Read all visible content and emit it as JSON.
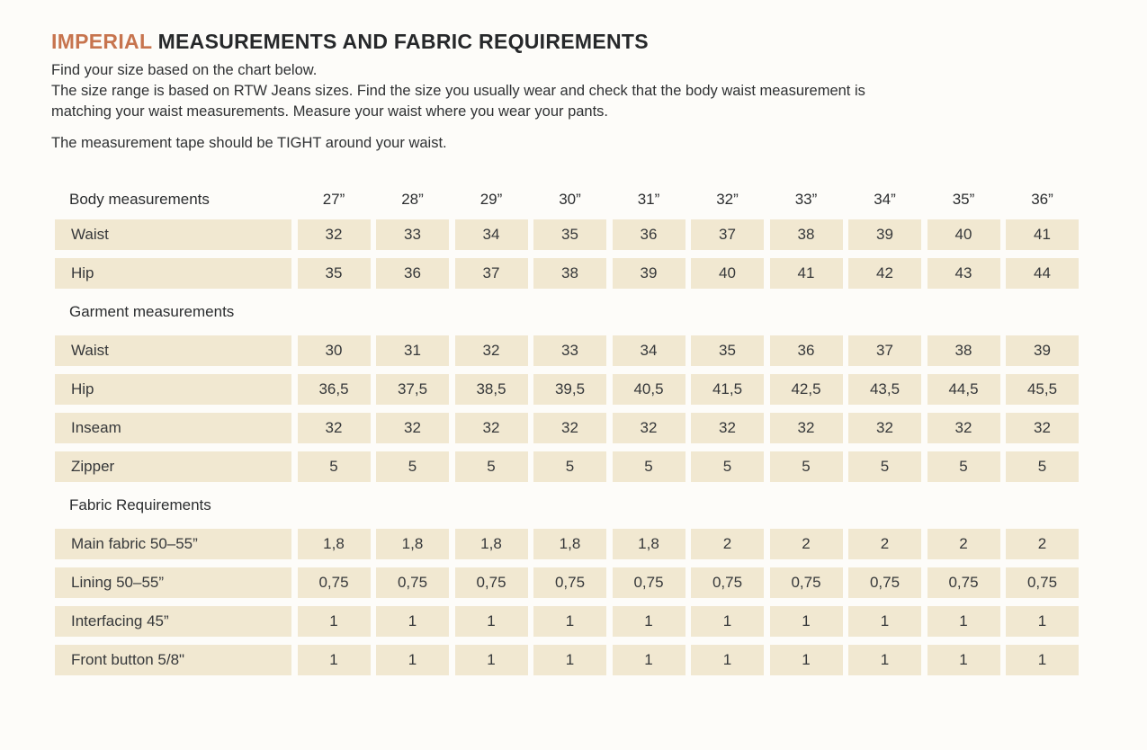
{
  "header": {
    "title_accent": "IMPERIAL",
    "title_rest": " MEASUREMENTS AND FABRIC REQUIREMENTS",
    "intro": [
      "Find your size based on the chart below.",
      "The size range is based on RTW Jeans sizes. Find the size you usually wear and check that the body waist measurement is matching your waist measurements. Measure your waist where you wear your pants.",
      "The measurement tape should be TIGHT around your waist."
    ]
  },
  "colors": {
    "accent": "#c7744e",
    "cell_background": "#f1e8d1",
    "text": "#303336",
    "page_background": "#fdfcf9"
  },
  "table": {
    "corner_label": "Body measurements",
    "sizes": [
      "27”",
      "28”",
      "29”",
      "30”",
      "31”",
      "32”",
      "33”",
      "34”",
      "35”",
      "36”"
    ],
    "sections": [
      {
        "header": null,
        "rows": [
          {
            "label": "Waist",
            "values": [
              "32",
              "33",
              "34",
              "35",
              "36",
              "37",
              "38",
              "39",
              "40",
              "41"
            ]
          },
          {
            "label": "Hip",
            "values": [
              "35",
              "36",
              "37",
              "38",
              "39",
              "40",
              "41",
              "42",
              "43",
              "44"
            ]
          }
        ]
      },
      {
        "header": "Garment measurements",
        "rows": [
          {
            "label": "Waist",
            "values": [
              "30",
              "31",
              "32",
              "33",
              "34",
              "35",
              "36",
              "37",
              "38",
              "39"
            ]
          },
          {
            "label": "Hip",
            "values": [
              "36,5",
              "37,5",
              "38,5",
              "39,5",
              "40,5",
              "41,5",
              "42,5",
              "43,5",
              "44,5",
              "45,5"
            ]
          },
          {
            "label": "Inseam",
            "values": [
              "32",
              "32",
              "32",
              "32",
              "32",
              "32",
              "32",
              "32",
              "32",
              "32"
            ]
          },
          {
            "label": "Zipper",
            "values": [
              "5",
              "5",
              "5",
              "5",
              "5",
              "5",
              "5",
              "5",
              "5",
              "5"
            ]
          }
        ]
      },
      {
        "header": "Fabric Requirements",
        "rows": [
          {
            "label": "Main fabric 50–55”",
            "values": [
              "1,8",
              "1,8",
              "1,8",
              "1,8",
              "1,8",
              "2",
              "2",
              "2",
              "2",
              "2"
            ]
          },
          {
            "label": "Lining 50–55”",
            "values": [
              "0,75",
              "0,75",
              "0,75",
              "0,75",
              "0,75",
              "0,75",
              "0,75",
              "0,75",
              "0,75",
              "0,75"
            ]
          },
          {
            "label": "Interfacing 45”",
            "values": [
              "1",
              "1",
              "1",
              "1",
              "1",
              "1",
              "1",
              "1",
              "1",
              "1"
            ]
          },
          {
            "label": "Front button 5/8\"",
            "values": [
              "1",
              "1",
              "1",
              "1",
              "1",
              "1",
              "1",
              "1",
              "1",
              "1"
            ]
          }
        ]
      }
    ]
  }
}
